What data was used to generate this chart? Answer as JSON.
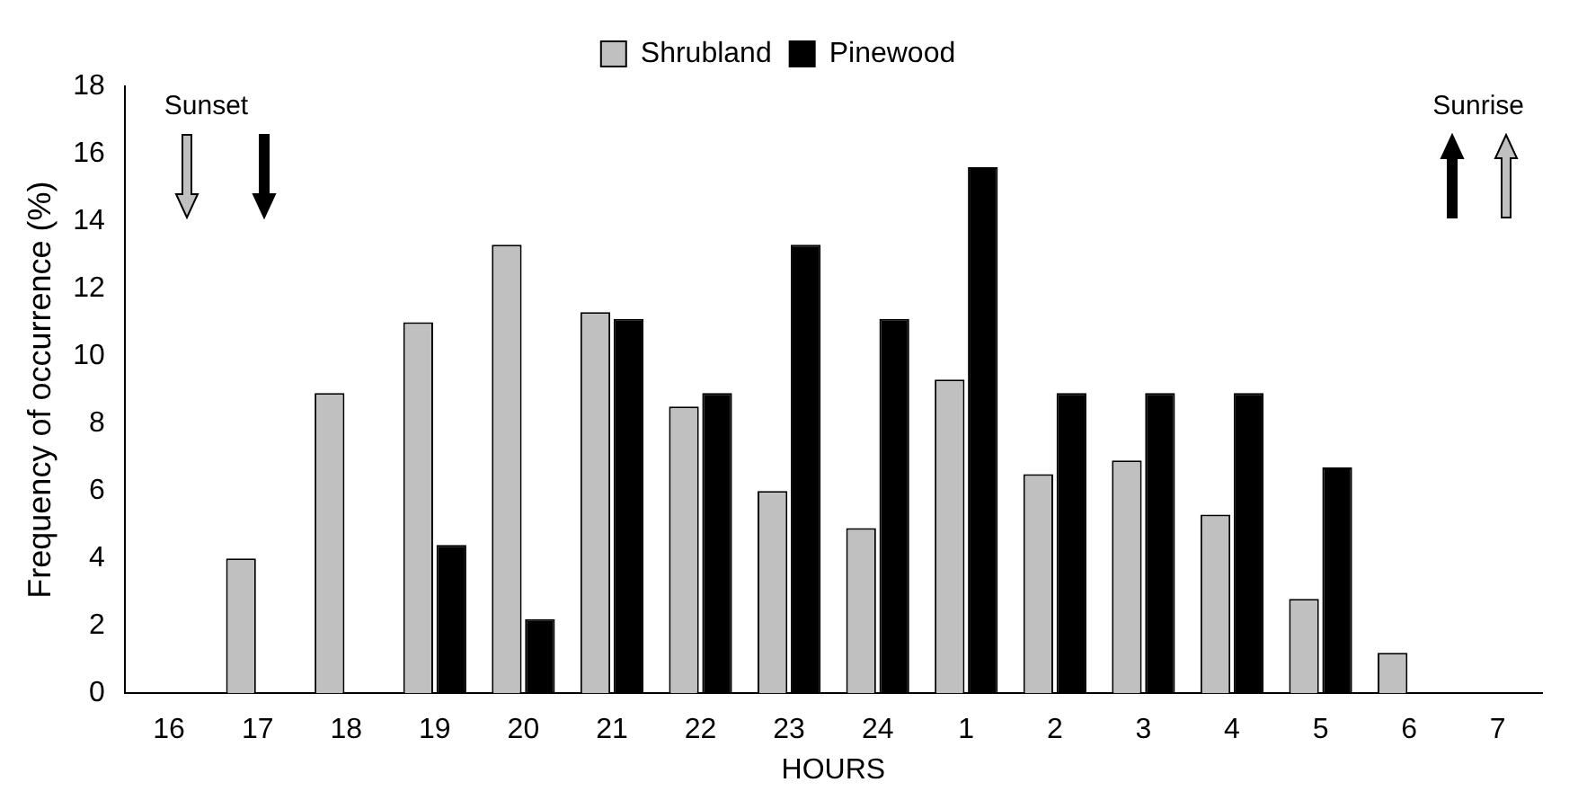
{
  "chart_data": {
    "type": "bar",
    "xlabel": "HOURS",
    "ylabel": "Frequency of occurrence (%)",
    "categories": [
      "16",
      "17",
      "18",
      "19",
      "20",
      "21",
      "22",
      "23",
      "24",
      "1",
      "2",
      "3",
      "4",
      "5",
      "6",
      "7"
    ],
    "series": [
      {
        "name": "Shrubland",
        "color": "#c0c0c0",
        "values": [
          null,
          4.0,
          8.9,
          11.0,
          13.3,
          11.3,
          8.5,
          6.0,
          4.9,
          9.3,
          6.5,
          6.9,
          5.3,
          2.8,
          1.2,
          null
        ]
      },
      {
        "name": "Pinewood",
        "color": "#000000",
        "values": [
          null,
          null,
          null,
          4.4,
          2.2,
          11.1,
          8.9,
          13.3,
          11.1,
          15.6,
          8.9,
          8.9,
          8.9,
          6.7,
          null,
          null
        ]
      }
    ],
    "ylim": [
      0,
      18
    ],
    "yticks": [
      0,
      2,
      4,
      6,
      8,
      10,
      12,
      14,
      16,
      18
    ],
    "grid": false,
    "legend": "top",
    "annotations": [
      "Sunset",
      "Sunrise"
    ]
  }
}
